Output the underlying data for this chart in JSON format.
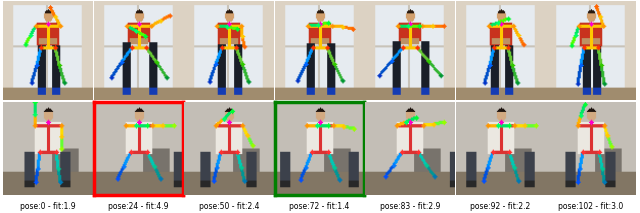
{
  "figure_width": 6.4,
  "figure_height": 2.13,
  "dpi": 100,
  "n_cols": 7,
  "labels": [
    "pose:0 - fit:1.9",
    "pose:24 - fit:4.9",
    "pose:50 - fit:2.4",
    "pose:72 - fit:1.4",
    "pose:83 - fit:2.9",
    "pose:92 - fit:2.2",
    "pose:102 - fit:3.0"
  ],
  "border_colors": [
    null,
    "red",
    null,
    "green",
    null,
    null,
    null
  ],
  "border_linewidth": 2.5,
  "label_fontsize": 5.5,
  "background_color": "#ffffff"
}
